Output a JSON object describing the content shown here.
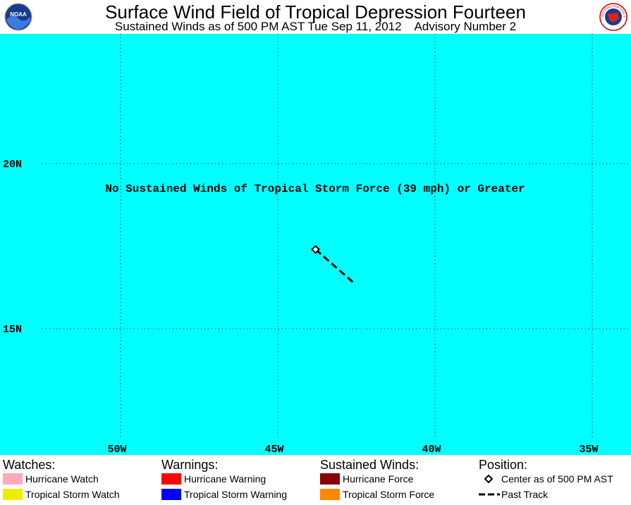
{
  "header": {
    "title": "Surface Wind Field of Tropical Depression Fourteen",
    "subtitle": "Sustained Winds as of 500 PM AST Tue Sep 11, 2012    Advisory Number 2",
    "logo_left": "NOAA",
    "logo_right": "NATIONAL WEATHER SERVICE"
  },
  "map": {
    "background_color": "#00ffff",
    "note": "No Sustained Winds of Tropical Storm Force (39 mph) or Greater",
    "lat_labels": [
      {
        "lat": 20,
        "label": "20N"
      },
      {
        "lat": 15,
        "label": "15N"
      }
    ],
    "lon_labels": [
      {
        "lon": -50,
        "label": "50W"
      },
      {
        "lon": -45,
        "label": "45W"
      },
      {
        "lon": -40,
        "label": "40W"
      },
      {
        "lon": -35,
        "label": "35W"
      }
    ],
    "center": {
      "lat": 17.4,
      "lon": -43.8
    },
    "past_track": [
      {
        "lat": 17.4,
        "lon": -43.8
      },
      {
        "lat": 16.4,
        "lon": -42.6
      }
    ]
  },
  "legend": {
    "watches": {
      "title": "Watches:",
      "items": [
        {
          "label": "Hurricane Watch",
          "color": "#ffaabb"
        },
        {
          "label": "Tropical Storm Watch",
          "color": "#eeee00"
        }
      ]
    },
    "warnings": {
      "title": "Warnings:",
      "items": [
        {
          "label": "Hurricane Warning",
          "color": "#ff0000"
        },
        {
          "label": "Tropical Storm Warning",
          "color": "#0000ff"
        }
      ]
    },
    "winds": {
      "title": "Sustained Winds:",
      "items": [
        {
          "label": "Hurricane Force",
          "color": "#880000"
        },
        {
          "label": "Tropical Storm Force",
          "color": "#ff8800"
        }
      ]
    },
    "position": {
      "title": "Position:",
      "center_label": "Center as of 500 PM AST",
      "track_label": "Past Track"
    }
  }
}
